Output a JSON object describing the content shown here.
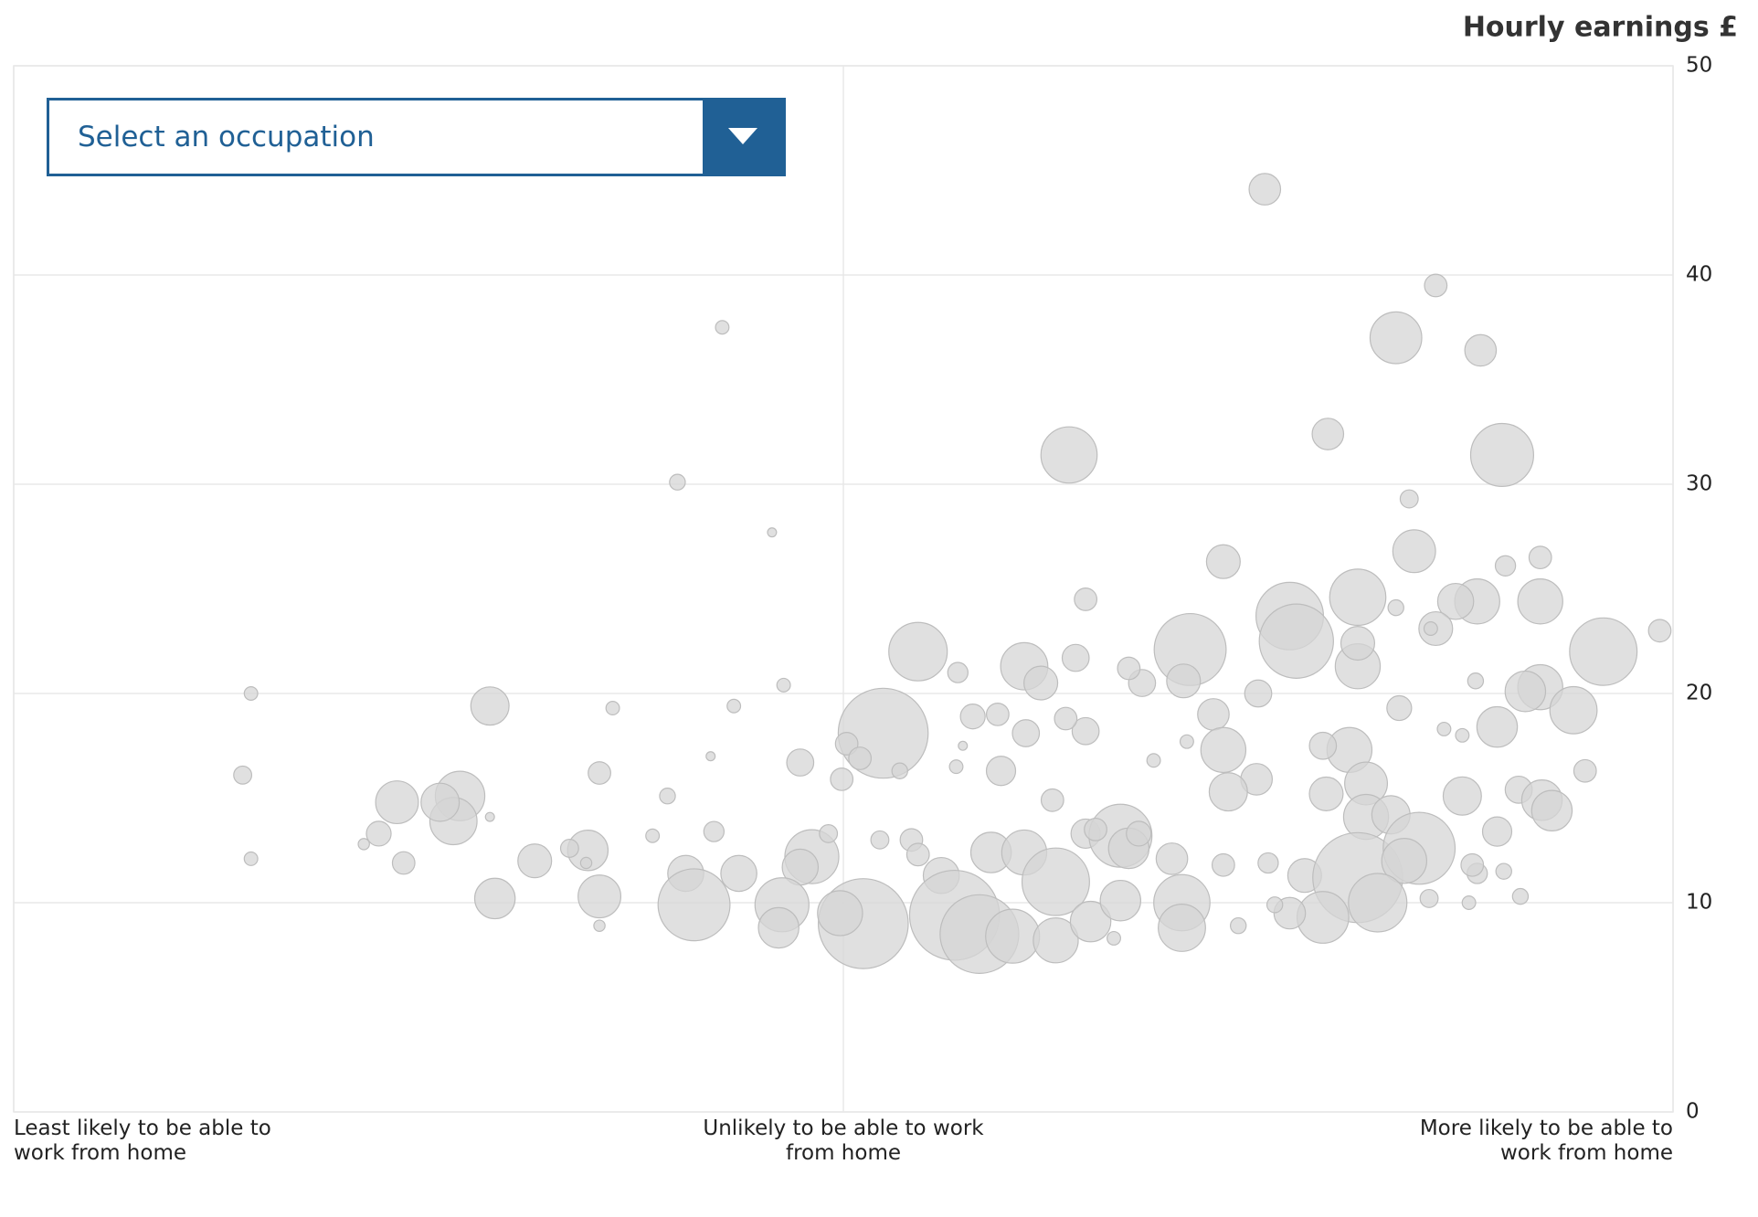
{
  "chart_data": {
    "type": "bubble",
    "y_label": "Hourly earnings £",
    "xlim": [
      0,
      100
    ],
    "xticks": [
      {
        "value": 0,
        "label": "Least likely to be able to work from home"
      },
      {
        "value": 50,
        "label": "Unlikely to be able to work from home"
      },
      {
        "value": 100,
        "label": "More likely to be able to work from home"
      }
    ],
    "ylim": [
      0,
      50
    ],
    "yticks": [
      0,
      10,
      20,
      30,
      40,
      50
    ],
    "grid": true,
    "color": "#d6d6d6",
    "x": [
      75.4,
      85.7,
      83.3,
      88.4,
      42.7,
      63.6,
      89.7,
      79.2,
      40.0,
      84.1,
      45.7,
      84.4,
      72.9,
      92.0,
      89.9,
      81.0,
      76.9,
      77.3,
      70.9,
      88.2,
      92.0,
      86.9,
      85.7,
      95.8,
      99.2,
      64.6,
      54.5,
      60.9,
      64.0,
      81.0,
      81.0,
      92.0,
      91.1,
      94.0,
      75.0,
      70.5,
      68.0,
      61.9,
      67.2,
      52.4,
      56.9,
      72.3,
      72.9,
      80.5,
      78.9,
      89.4,
      83.5,
      28.7,
      14.3,
      43.4,
      46.4,
      36.1,
      57.8,
      59.3,
      61.0,
      64.6,
      63.4,
      50.2,
      51.0,
      59.5,
      74.9,
      73.2,
      13.8,
      35.3,
      47.4,
      53.4,
      26.9,
      23.1,
      26.5,
      25.7,
      22.0,
      49.9,
      87.3,
      90.7,
      92.1,
      92.7,
      94.7,
      81.5,
      79.1,
      81.5,
      83.0,
      89.4,
      64.6,
      66.7,
      67.2,
      65.2,
      67.8,
      62.6,
      39.4,
      42.2,
      34.6,
      33.5,
      31.4,
      23.5,
      14.3,
      29.0,
      35.3,
      40.5,
      43.7,
      41.0,
      48.1,
      47.4,
      46.3,
      46.1,
      51.2,
      49.8,
      54.1,
      54.5,
      55.9,
      56.7,
      58.2,
      60.2,
      58.9,
      60.9,
      62.8,
      62.8,
      64.9,
      66.7,
      69.8,
      70.4,
      70.4,
      72.9,
      77.8,
      81.0,
      84.7,
      83.8,
      82.2,
      78.9,
      76.9,
      73.8,
      76.0,
      85.3,
      87.7,
      90.8,
      88.2,
      89.8,
      87.9,
      49.1,
      52.2,
      21.1,
      38.5,
      28.7,
      87.3,
      86.2,
      88.1,
      85.4,
      83.3,
      70.7,
      68.7,
      56.8,
      57.2,
      42.0,
      34.5,
      35.3,
      66.3,
      75.6
    ],
    "values": [
      44.1,
      39.5,
      37.0,
      36.4,
      37.5,
      31.4,
      31.4,
      32.4,
      30.1,
      29.3,
      27.7,
      26.8,
      26.3,
      26.5,
      26.1,
      24.6,
      23.7,
      22.5,
      22.1,
      24.4,
      24.4,
      24.4,
      23.1,
      22.0,
      23.0,
      24.5,
      22.0,
      21.3,
      21.7,
      21.3,
      22.4,
      20.3,
      20.1,
      19.2,
      20.0,
      20.6,
      20.5,
      20.5,
      21.2,
      18.1,
      21.0,
      19.0,
      17.3,
      17.3,
      17.5,
      18.4,
      19.3,
      19.4,
      20.0,
      19.4,
      20.4,
      19.3,
      18.9,
      19.0,
      18.1,
      18.2,
      18.8,
      17.6,
      16.9,
      16.3,
      15.9,
      15.3,
      16.1,
      16.2,
      16.7,
      16.3,
      15.1,
      14.8,
      13.9,
      14.8,
      13.3,
      15.9,
      15.1,
      15.4,
      14.9,
      14.4,
      16.3,
      15.7,
      15.2,
      14.1,
      14.2,
      13.4,
      13.3,
      13.2,
      12.6,
      13.5,
      13.3,
      14.9,
      15.1,
      13.4,
      12.5,
      12.6,
      12.0,
      11.9,
      12.1,
      10.2,
      10.3,
      11.4,
      11.4,
      9.9,
      12.2,
      11.7,
      9.9,
      8.8,
      9.0,
      9.5,
      13.0,
      12.3,
      11.3,
      9.4,
      8.5,
      8.4,
      12.4,
      12.4,
      11.0,
      8.2,
      9.1,
      10.1,
      12.1,
      10.0,
      8.8,
      11.8,
      11.3,
      11.2,
      12.6,
      12.0,
      10.0,
      9.3,
      9.5,
      8.9,
      9.9,
      10.2,
      10.0,
      10.3,
      11.4,
      11.5,
      11.8,
      13.3,
      13.0,
      12.8,
      13.2,
      14.1,
      18.0,
      18.3,
      20.6,
      23.1,
      24.1,
      17.7,
      16.8,
      16.5,
      17.5,
      17.0,
      11.9,
      8.9,
      8.3,
      11.9
    ],
    "sizes": [
      14,
      10,
      23,
      14,
      6,
      25,
      28,
      14,
      7,
      8,
      4,
      19,
      15,
      10,
      9,
      25,
      30,
      33,
      32,
      20,
      20,
      16,
      15,
      30,
      10,
      10,
      26,
      21,
      12,
      20,
      15,
      20,
      18,
      21,
      12,
      15,
      12,
      15,
      10,
      40,
      9,
      14,
      20,
      20,
      12,
      18,
      11,
      17,
      6,
      6,
      6,
      6,
      11,
      10,
      12,
      12,
      10,
      10,
      10,
      13,
      14,
      17,
      8,
      10,
      12,
      7,
      22,
      19,
      21,
      17,
      11,
      10,
      17,
      12,
      18,
      18,
      10,
      19,
      15,
      20,
      17,
      13,
      13,
      28,
      18,
      10,
      11,
      10,
      7,
      9,
      18,
      8,
      15,
      10,
      6,
      18,
      19,
      16,
      16,
      32,
      24,
      16,
      24,
      18,
      40,
      20,
      10,
      10,
      16,
      40,
      35,
      24,
      18,
      20,
      30,
      20,
      18,
      18,
      14,
      25,
      21,
      10,
      15,
      40,
      32,
      20,
      26,
      23,
      14,
      7,
      7,
      8,
      6,
      7,
      9,
      7,
      10,
      8,
      8,
      5,
      6,
      4,
      6,
      6,
      7,
      6,
      7,
      6,
      6,
      6,
      4,
      4,
      5,
      5,
      6,
      9
    ]
  },
  "dropdown": {
    "placeholder": "Select an occupation"
  }
}
